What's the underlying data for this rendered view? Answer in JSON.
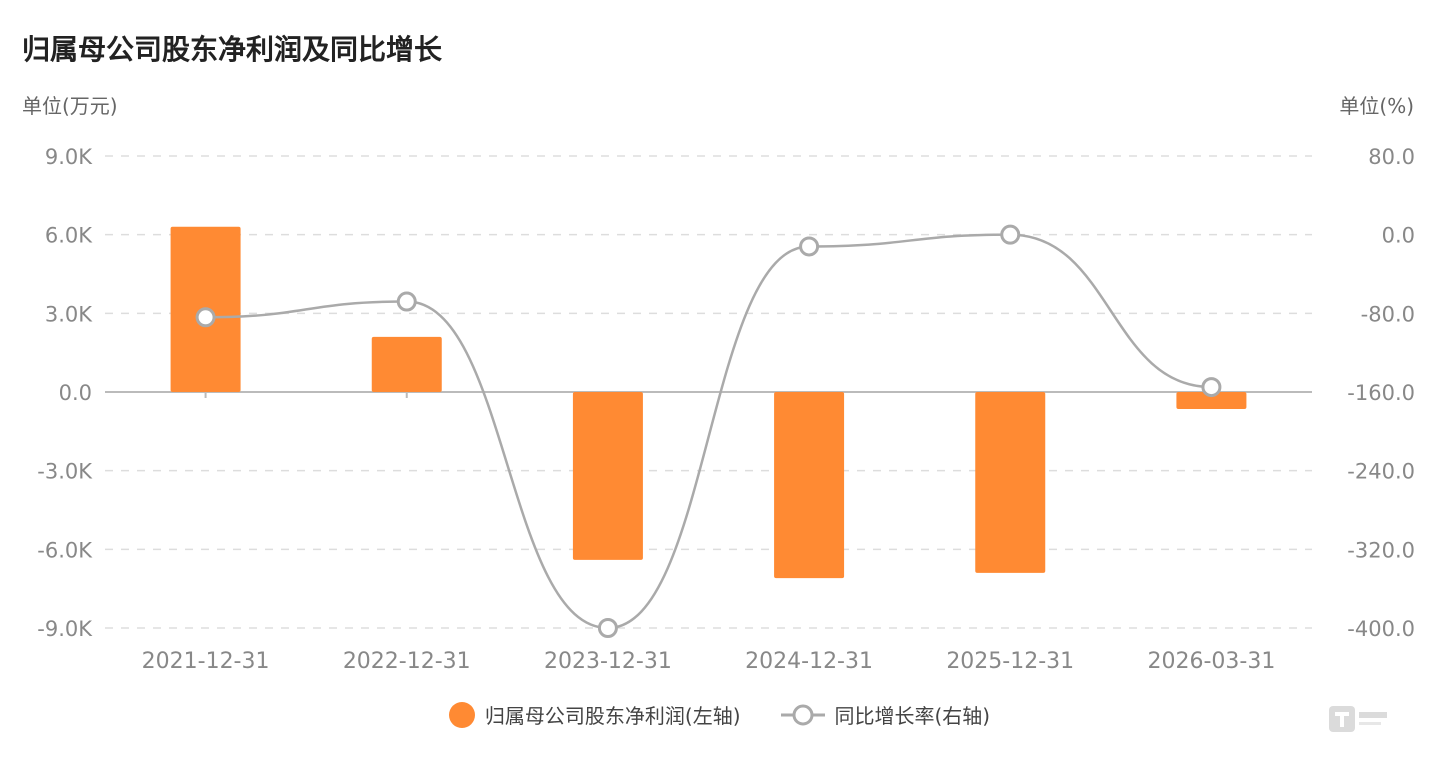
{
  "title": "归属母公司股东净利润及同比增长",
  "units": {
    "left": "单位(万元)",
    "right": "单位(%)"
  },
  "colors": {
    "bar": "#FF8A33",
    "line": "#AAAAAA",
    "grid": "#DDDDDD",
    "axis_text": "#888888",
    "zero_line": "#BBBBBB"
  },
  "chart_data": {
    "type": "bar",
    "categories": [
      "2021-12-31",
      "2022-12-31",
      "2023-12-31",
      "2024-12-31",
      "2025-12-31",
      "2026-03-31"
    ],
    "series": [
      {
        "name": "归属母公司股东净利润(左轴)",
        "type": "bar",
        "axis": "left",
        "values": [
          6300,
          2100,
          -6400,
          -7100,
          -6900,
          -650
        ]
      },
      {
        "name": "同比增长率(右轴)",
        "type": "line",
        "axis": "right",
        "smooth": true,
        "values": [
          -84,
          -68,
          -400,
          -12,
          0,
          -155
        ]
      }
    ],
    "y_left": {
      "min": -9000,
      "max": 9000,
      "ticks": [
        9000,
        6000,
        3000,
        0,
        -3000,
        -6000,
        -9000
      ],
      "tick_labels": [
        "9.0K",
        "6.0K",
        "3.0K",
        "0.0",
        "-3.0K",
        "-6.0K",
        "-9.0K"
      ]
    },
    "y_right": {
      "min": -400,
      "max": 80,
      "ticks": [
        80,
        0,
        -80,
        -160,
        -240,
        -320,
        -400
      ],
      "tick_labels": [
        "80.0",
        "0.0",
        "-80.0",
        "-160.0",
        "-240.0",
        "-320.0",
        "-400.0"
      ]
    },
    "grid": true,
    "legend_position": "bottom"
  },
  "legend": {
    "bar_label": "归属母公司股东净利润(左轴)",
    "line_label": "同比增长率(右轴)"
  }
}
